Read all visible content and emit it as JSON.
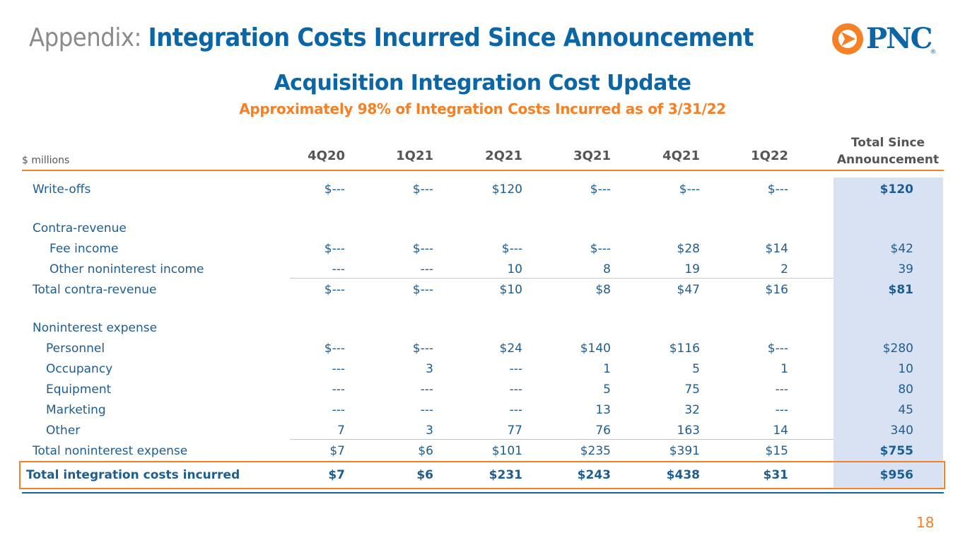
{
  "slide": {
    "title_prefix": "Appendix: ",
    "title_main": "Integration Costs Incurred Since Announcement",
    "heading": "Acquisition Integration Cost Update",
    "subheading": "Approximately 98% of Integration Costs Incurred as of 3/31/22",
    "page_number": "18"
  },
  "logo": {
    "text": "PNC",
    "registered": "®",
    "icon": "pnc-logo-icon"
  },
  "colors": {
    "title_blue": "#0a66a6",
    "text_blue": "#1d5d91",
    "orange": "#f58025",
    "gray": "#8b8b8b",
    "shade": "#d9e2f3"
  },
  "table": {
    "units": "$ millions",
    "headers": [
      "4Q20",
      "1Q21",
      "2Q21",
      "3Q21",
      "4Q21",
      "1Q22"
    ],
    "total_header_line1": "Total Since",
    "total_header_line2": "Announcement",
    "rows": [
      {
        "label": "Write-offs",
        "values": [
          "$---",
          "$---",
          "$120",
          "$---",
          "$---",
          "$---",
          "$120"
        ]
      },
      {
        "label": "Contra-revenue",
        "values": []
      },
      {
        "label": "Fee income",
        "values": [
          "$---",
          "$---",
          "$---",
          "$---",
          "$28",
          "$14",
          "$42"
        ]
      },
      {
        "label": "Other noninterest income",
        "values": [
          "---",
          "---",
          "10",
          "8",
          "19",
          "2",
          "39"
        ]
      },
      {
        "label": "Total contra-revenue",
        "values": [
          "$---",
          "$---",
          "$10",
          "$8",
          "$47",
          "$16",
          "$81"
        ]
      },
      {
        "label": "Noninterest expense",
        "values": []
      },
      {
        "label": "Personnel",
        "values": [
          "$---",
          "$---",
          "$24",
          "$140",
          "$116",
          "$---",
          "$280"
        ]
      },
      {
        "label": "Occupancy",
        "values": [
          "---",
          "3",
          "---",
          "1",
          "5",
          "1",
          "10"
        ]
      },
      {
        "label": "Equipment",
        "values": [
          "---",
          "---",
          "---",
          "5",
          "75",
          "---",
          "80"
        ]
      },
      {
        "label": "Marketing",
        "values": [
          "---",
          "---",
          "---",
          "13",
          "32",
          "---",
          "45"
        ]
      },
      {
        "label": "Other",
        "values": [
          "7",
          "3",
          "77",
          "76",
          "163",
          "14",
          "340"
        ]
      },
      {
        "label": "Total noninterest expense",
        "values": [
          "$7",
          "$6",
          "$101",
          "$235",
          "$391",
          "$15",
          "$755"
        ]
      },
      {
        "label": "Total integration costs incurred",
        "values": [
          "$7",
          "$6",
          "$231",
          "$243",
          "$438",
          "$31",
          "$956"
        ]
      }
    ]
  }
}
